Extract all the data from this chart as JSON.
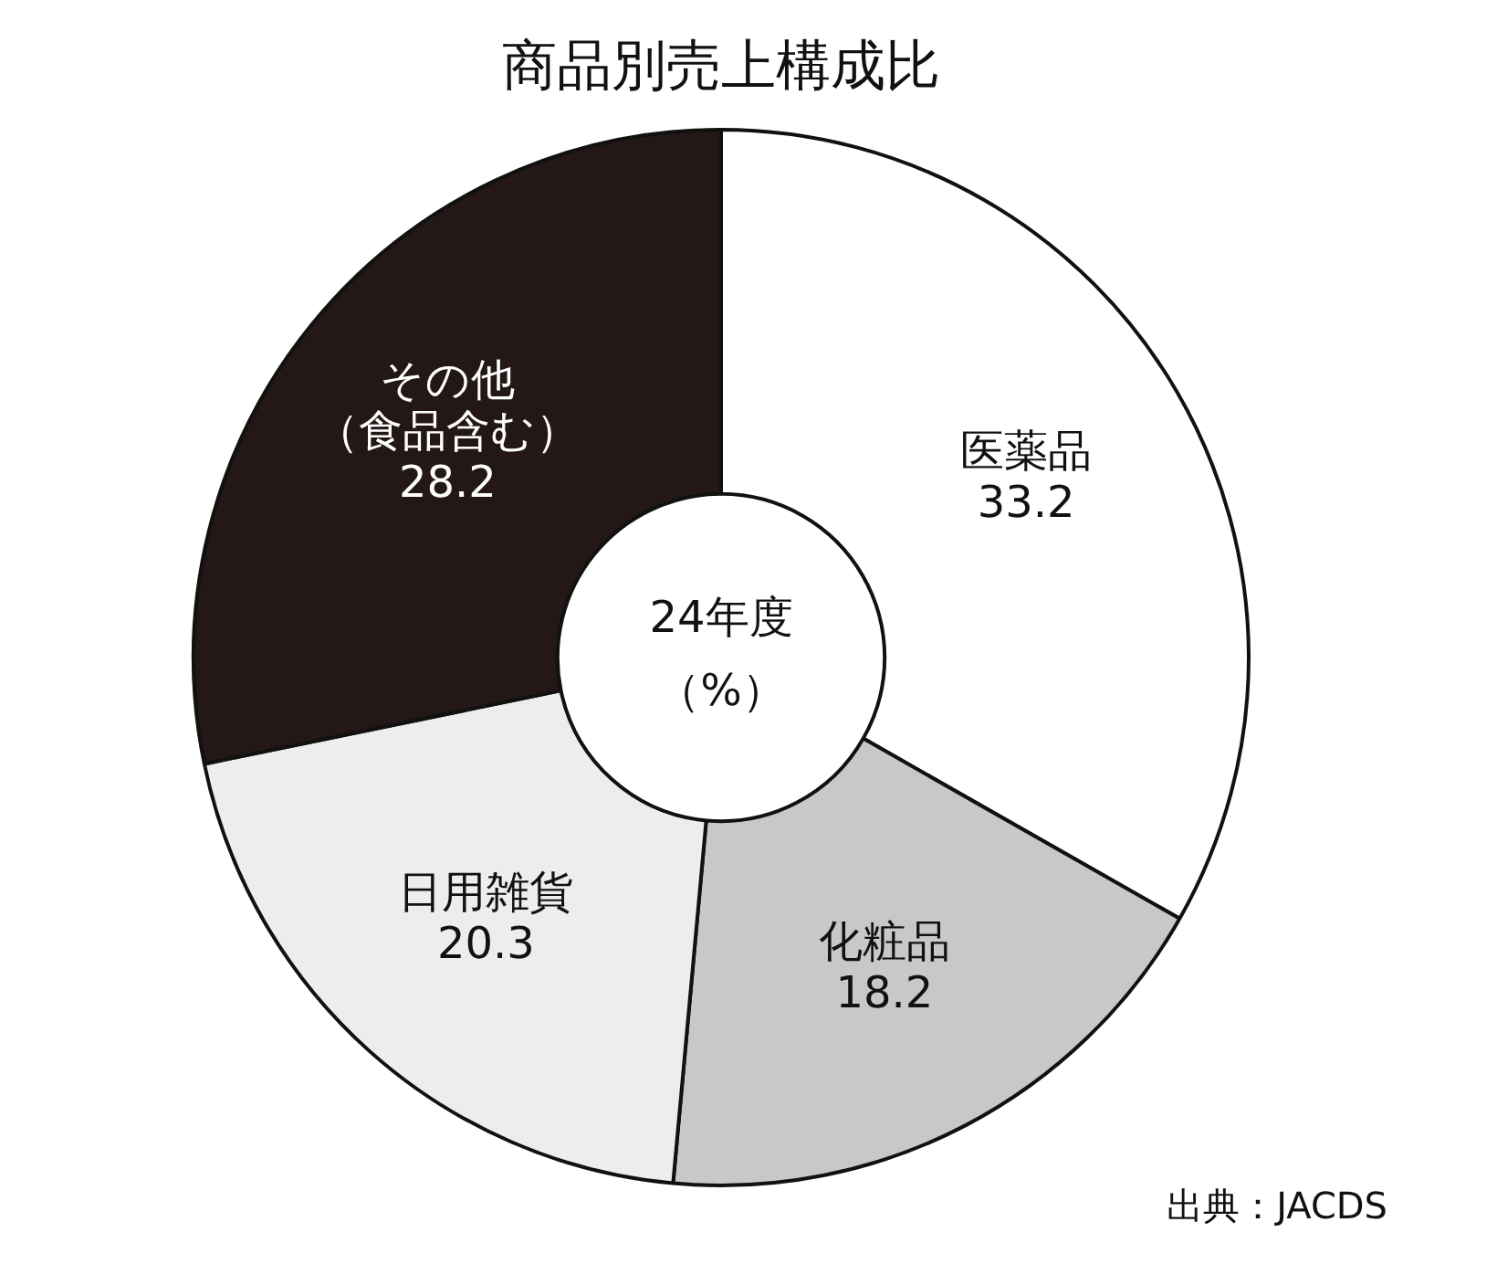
{
  "chart_data": {
    "type": "donut",
    "title": "商品別売上構成比",
    "categories": [
      "医薬品",
      "化粧品",
      "日用雑貨",
      "その他（食品含む）"
    ],
    "values": [
      33.2,
      18.2,
      20.3,
      28.2
    ],
    "colors": [
      "#ffffff",
      "#c8c8c8",
      "#ededed",
      "#231815"
    ],
    "data_labels": true,
    "annotations": [
      "24年度",
      "（%）",
      "出典：JACDS"
    ]
  }
}
